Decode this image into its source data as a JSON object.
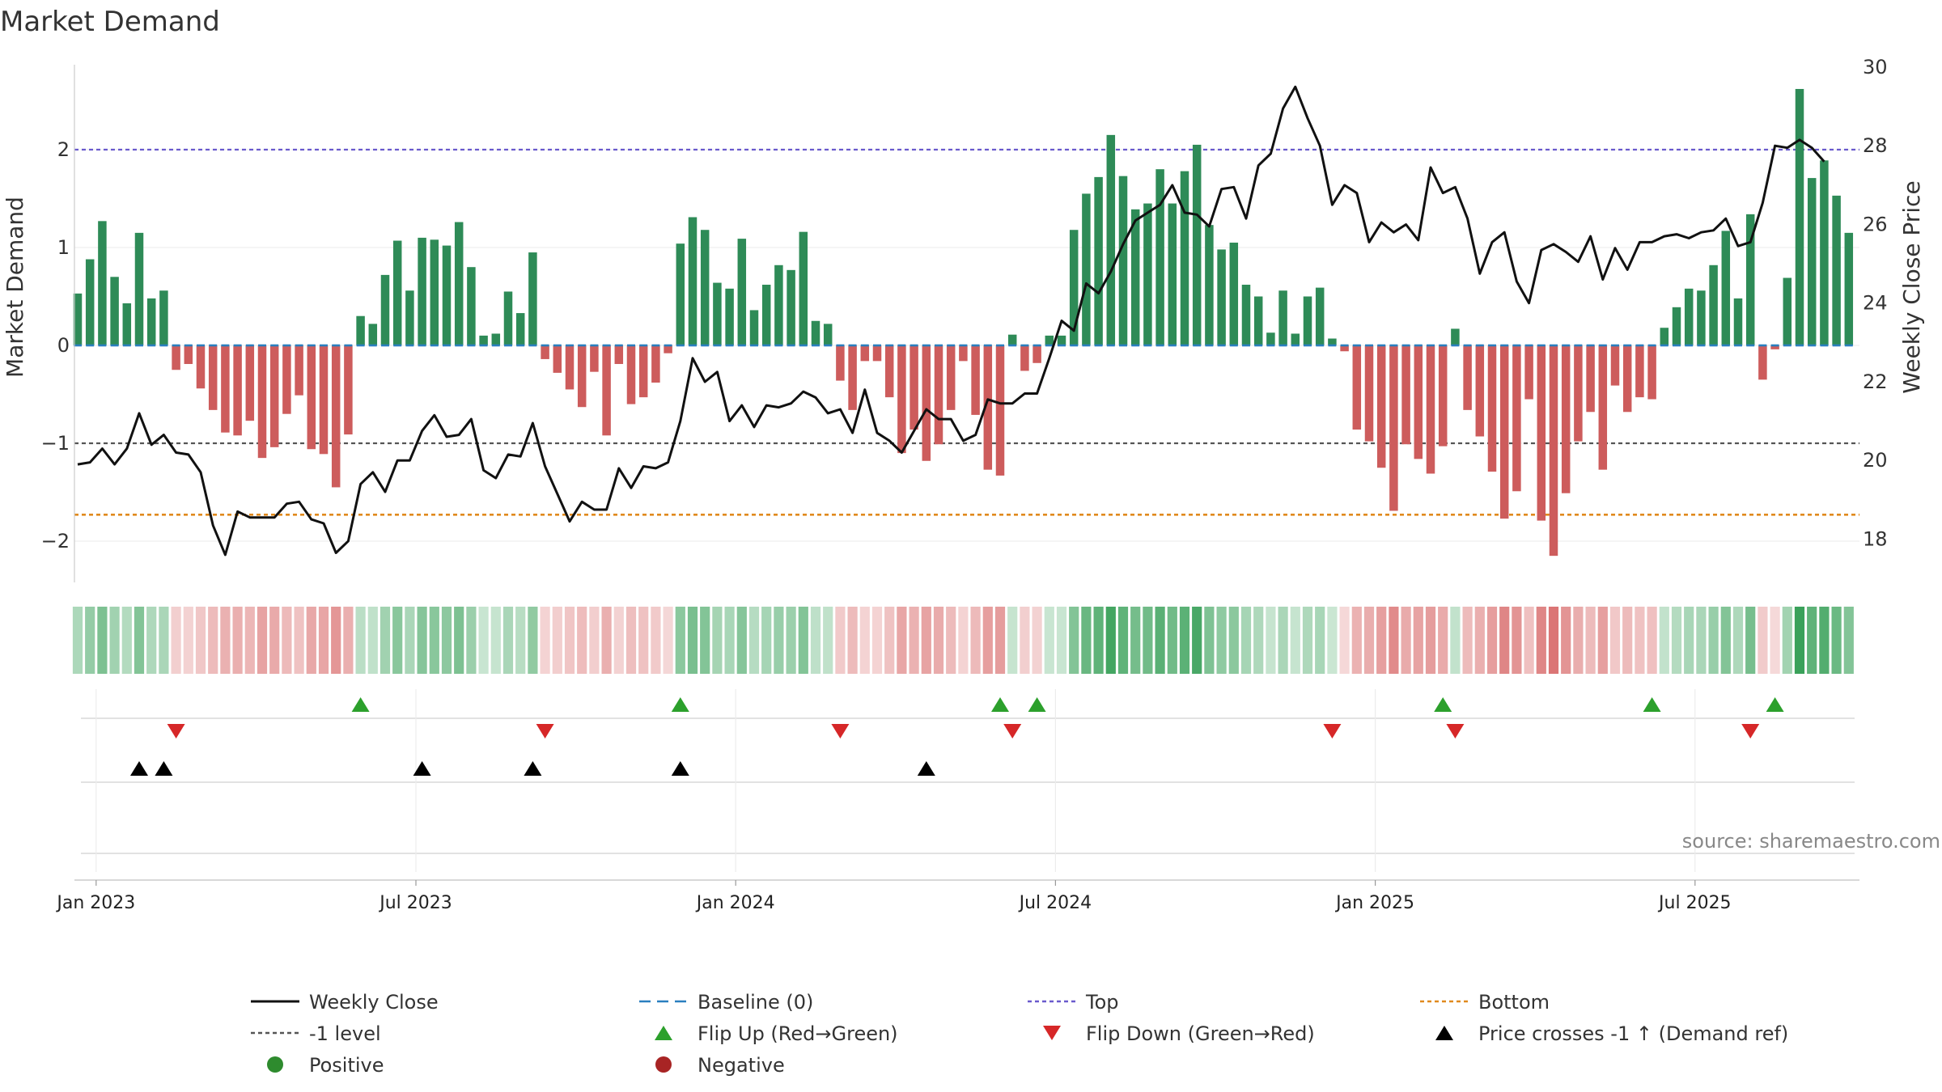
{
  "chart_data": {
    "type": "bar+line",
    "title": "Market Demand",
    "ylabel_left": "Market Demand",
    "ylabel_right": "Weekly Close Price",
    "source": "source: sharemaestro.com",
    "ylim_left": [
      -2.4,
      2.9
    ],
    "ylim_right": [
      17,
      30
    ],
    "yticks_left": [
      {
        "v": 2,
        "label": "2"
      },
      {
        "v": 1,
        "label": "1"
      },
      {
        "v": 0,
        "label": "0"
      },
      {
        "v": -1,
        "label": "−1"
      },
      {
        "v": -2,
        "label": "−2"
      }
    ],
    "yticks_right": [
      {
        "v": 30,
        "label": "30"
      },
      {
        "v": 28,
        "label": "28"
      },
      {
        "v": 26,
        "label": "26"
      },
      {
        "v": 24,
        "label": "24"
      },
      {
        "v": 22,
        "label": "22"
      },
      {
        "v": 20,
        "label": "20"
      },
      {
        "v": 18,
        "label": "18"
      }
    ],
    "xticks": [
      {
        "i": 1.5,
        "label": "Jan 2023"
      },
      {
        "i": 27.5,
        "label": "Jul 2023"
      },
      {
        "i": 53.5,
        "label": "Jan 2024"
      },
      {
        "i": 79.5,
        "label": "Jul 2024"
      },
      {
        "i": 105.5,
        "label": "Jan 2025"
      },
      {
        "i": 131.5,
        "label": "Jul 2025"
      }
    ],
    "reference_lines": {
      "top": 2.0,
      "bottom": -1.73,
      "minus_one": -1.0,
      "baseline": 0
    },
    "demand": [
      0.53,
      0.88,
      1.27,
      0.7,
      0.43,
      1.15,
      0.48,
      0.56,
      -0.25,
      -0.19,
      -0.44,
      -0.66,
      -0.89,
      -0.92,
      -0.77,
      -1.15,
      -1.04,
      -0.7,
      -0.51,
      -1.06,
      -1.11,
      -1.45,
      -0.91,
      0.3,
      0.22,
      0.72,
      1.07,
      0.56,
      1.1,
      1.08,
      1.02,
      1.26,
      0.8,
      0.1,
      0.12,
      0.55,
      0.33,
      0.95,
      -0.14,
      -0.28,
      -0.45,
      -0.63,
      -0.27,
      -0.92,
      -0.19,
      -0.6,
      -0.53,
      -0.38,
      -0.08,
      1.04,
      1.31,
      1.18,
      0.64,
      0.58,
      1.09,
      0.36,
      0.62,
      0.82,
      0.77,
      1.16,
      0.25,
      0.22,
      -0.36,
      -0.66,
      -0.16,
      -0.16,
      -0.53,
      -1.1,
      -0.86,
      -1.18,
      -1.01,
      -0.66,
      -0.16,
      -0.71,
      -1.27,
      -1.33,
      0.11,
      -0.26,
      -0.18,
      0.1,
      0.1,
      1.18,
      1.55,
      1.72,
      2.15,
      1.73,
      1.39,
      1.45,
      1.8,
      1.45,
      1.78,
      2.05,
      1.23,
      0.98,
      1.05,
      0.62,
      0.5,
      0.13,
      0.56,
      0.12,
      0.5,
      0.59,
      0.07,
      -0.06,
      -0.86,
      -0.98,
      -1.25,
      -1.69,
      -1.01,
      -1.16,
      -1.31,
      -1.03,
      0.17,
      -0.66,
      -0.93,
      -1.29,
      -1.77,
      -1.49,
      -0.55,
      -1.79,
      -2.15,
      -1.51,
      -0.98,
      -0.68,
      -1.27,
      -0.41,
      -0.68,
      -0.53,
      -0.55,
      0.18,
      0.39,
      0.58,
      0.56,
      0.82,
      1.17,
      0.48,
      1.34,
      -0.35,
      -0.04,
      0.69,
      2.62,
      1.71,
      1.89,
      1.53,
      1.15
    ],
    "close": [
      19.9,
      19.95,
      20.3,
      19.9,
      20.3,
      21.2,
      20.4,
      20.65,
      20.2,
      20.15,
      19.7,
      18.35,
      17.6,
      18.7,
      18.55,
      18.55,
      18.55,
      18.9,
      18.95,
      18.5,
      18.4,
      17.65,
      17.95,
      19.4,
      19.7,
      19.2,
      20.0,
      20.0,
      20.75,
      21.15,
      20.6,
      20.65,
      21.05,
      19.75,
      19.55,
      20.15,
      20.1,
      20.95,
      19.85,
      19.15,
      18.45,
      18.95,
      18.75,
      18.75,
      19.8,
      19.3,
      19.85,
      19.8,
      19.95,
      21.0,
      22.6,
      22.0,
      22.25,
      21.0,
      21.4,
      20.85,
      21.4,
      21.35,
      21.45,
      21.75,
      21.6,
      21.2,
      21.3,
      20.7,
      21.8,
      20.7,
      20.5,
      20.2,
      20.75,
      21.3,
      21.05,
      21.05,
      20.5,
      20.65,
      21.55,
      21.45,
      21.45,
      21.7,
      21.7,
      22.6,
      23.55,
      23.3,
      24.5,
      24.25,
      24.8,
      25.5,
      26.1,
      26.3,
      26.5,
      27.0,
      26.3,
      26.25,
      25.95,
      26.9,
      26.95,
      26.15,
      27.5,
      27.8,
      28.95,
      29.5,
      28.7,
      28.0,
      26.5,
      27.0,
      26.8,
      25.55,
      26.05,
      25.8,
      26.0,
      25.6,
      27.45,
      26.8,
      26.95,
      26.15,
      24.75,
      25.55,
      25.8,
      24.55,
      24.0,
      25.35,
      25.5,
      25.3,
      25.05,
      25.7,
      24.6,
      25.4,
      24.85,
      25.55,
      25.55,
      25.7,
      25.75,
      25.65,
      25.8,
      25.85,
      26.15,
      25.45,
      25.55,
      26.55,
      28.0,
      27.95,
      28.15,
      27.95,
      27.6
    ],
    "strip_colors": {
      "positive": "#3aa15a",
      "negative": "#d96e6e"
    },
    "events": {
      "flip_up": [
        23,
        49,
        75,
        78,
        111,
        128,
        138
      ],
      "flip_down": [
        8,
        38,
        62,
        76,
        102,
        112,
        136
      ],
      "price_cross_up": [
        5,
        7,
        28,
        37,
        49,
        69
      ]
    },
    "colors": {
      "positive": "#2e8b57",
      "negative": "#cd5c5c",
      "close": "#111111",
      "baseline": "#2a7fbf",
      "top": "#6a5acd",
      "bottom": "#e08a1e",
      "minus_one": "#555555",
      "flip_up": "#2ca02c",
      "flip_down": "#d62728",
      "cross": "#000000",
      "legend_positive": "#2e8b2e",
      "legend_negative": "#a82424"
    },
    "legend": [
      {
        "label": "Weekly Close",
        "kind": "line-solid",
        "color": "#111111"
      },
      {
        "label": "Baseline (0)",
        "kind": "line-dash",
        "color": "#2a7fbf"
      },
      {
        "label": "Top",
        "kind": "line-dot",
        "color": "#6a5acd"
      },
      {
        "label": "Bottom",
        "kind": "line-dot",
        "color": "#e08a1e"
      },
      {
        "label": "-1 level",
        "kind": "line-dot",
        "color": "#555555"
      },
      {
        "label": "Flip Up (Red→Green)",
        "kind": "tri-up",
        "color": "#2ca02c"
      },
      {
        "label": "Flip Down (Green→Red)",
        "kind": "tri-down",
        "color": "#d62728"
      },
      {
        "label": "Price crosses -1 ↑ (Demand ref)",
        "kind": "tri-up",
        "color": "#000000"
      },
      {
        "label": "Positive",
        "kind": "dot",
        "color": "#2e8b2e"
      },
      {
        "label": "Negative",
        "kind": "dot",
        "color": "#a82424"
      }
    ]
  }
}
